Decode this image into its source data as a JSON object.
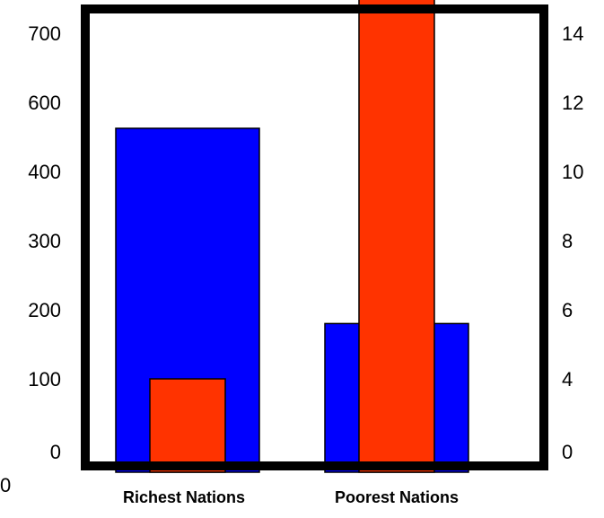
{
  "chart_data": {
    "type": "bar",
    "categories": [
      "Richest Nations",
      "Poorest Nations"
    ],
    "series": [
      {
        "axis": "left",
        "color": "#0000ff",
        "values": [
          525,
          180
        ]
      },
      {
        "axis": "right",
        "color": "#ff3300",
        "values": [
          4,
          15
        ]
      }
    ],
    "left_axis": {
      "tick_labels": [
        "0",
        "100",
        "200",
        "300",
        "400",
        "600",
        "700"
      ]
    },
    "right_axis": {
      "tick_labels": [
        "0",
        "4",
        "6",
        "8",
        "10",
        "12",
        "14"
      ]
    },
    "stray_label": "0",
    "grid": false,
    "legend": "none",
    "frame_color": "#000000"
  }
}
